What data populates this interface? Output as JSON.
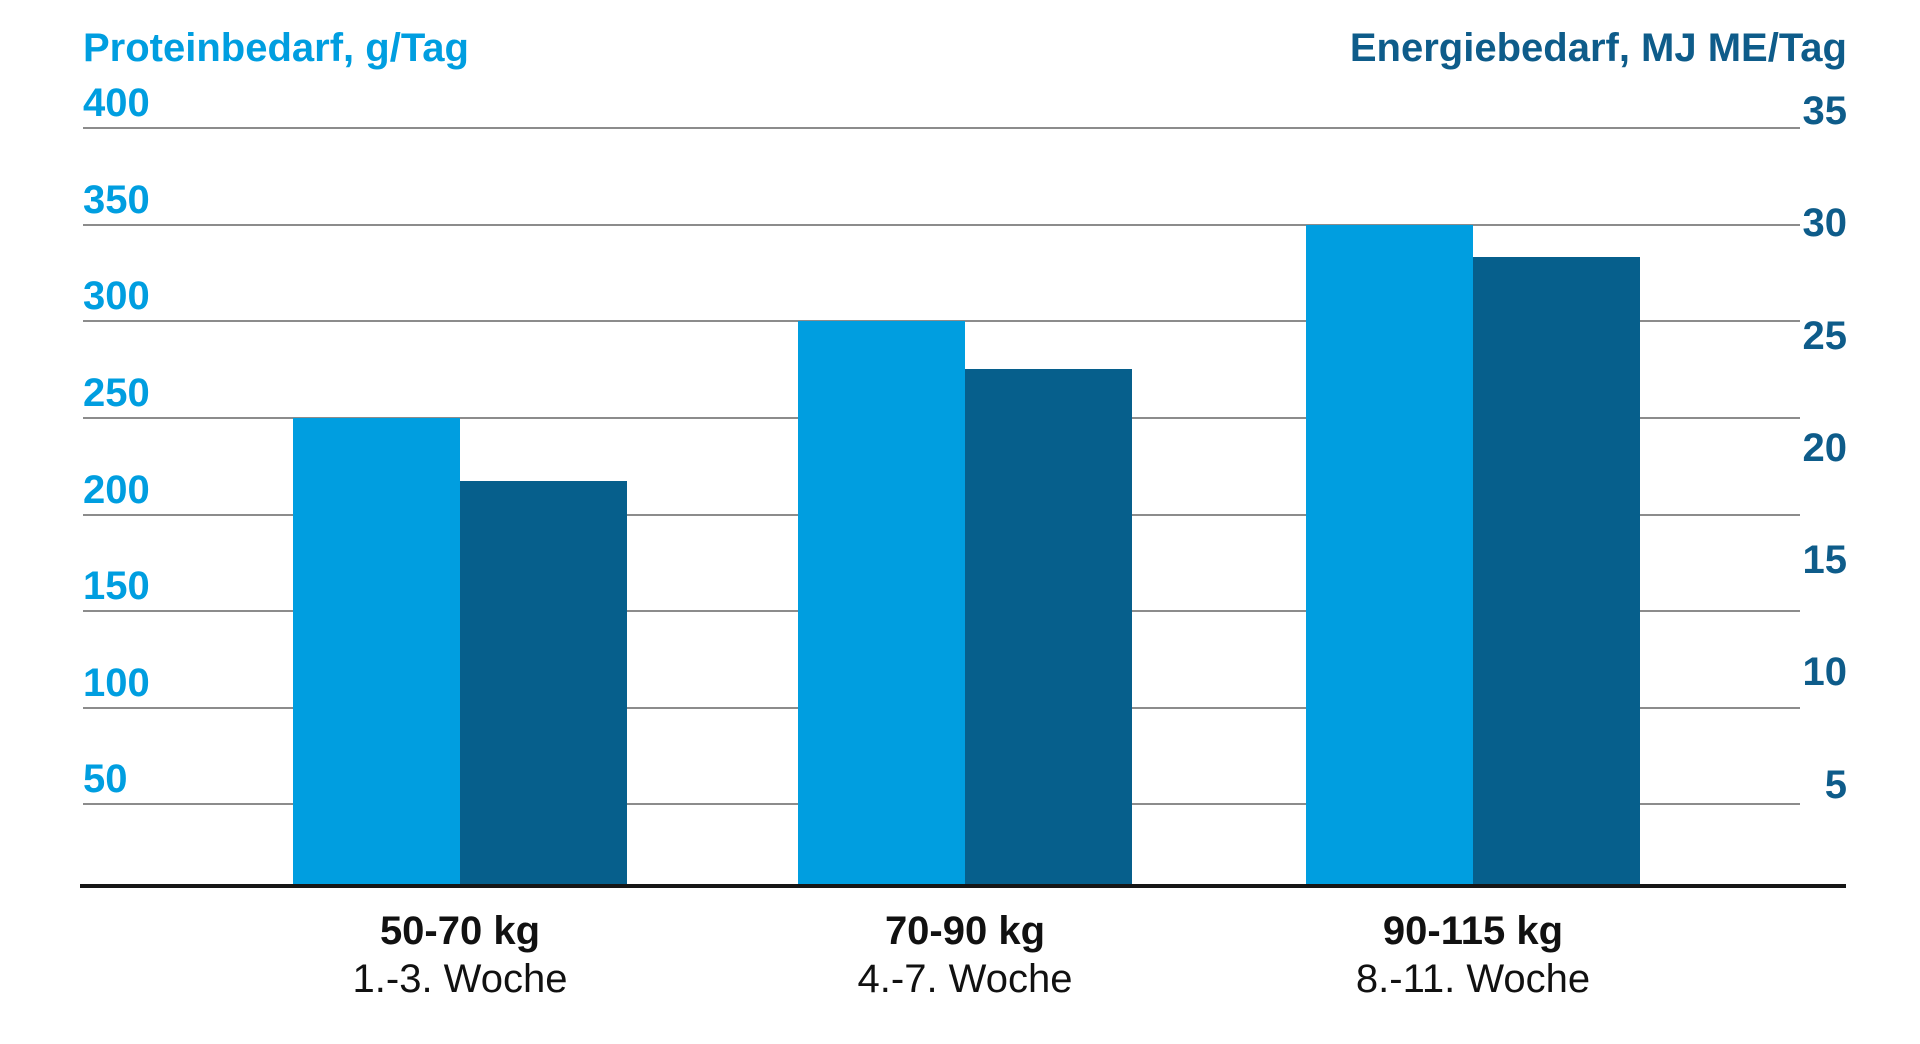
{
  "chart_data": {
    "type": "bar",
    "dual_axis": true,
    "grid": true,
    "legend": false,
    "categories": [
      {
        "weight_range": "50-70 kg",
        "weeks": "1.-3. Woche"
      },
      {
        "weight_range": "70-90 kg",
        "weeks": "4.-7. Woche"
      },
      {
        "weight_range": "90-115 kg",
        "weeks": "8.-11. Woche"
      }
    ],
    "series": [
      {
        "name": "Proteinbedarf, g/Tag",
        "axis": "left",
        "color": "#009EE0",
        "values": [
          250,
          300,
          350
        ]
      },
      {
        "name": "Energiebedarf, MJ ME/Tag",
        "axis": "right",
        "color": "#065F8C",
        "values": [
          18.5,
          23.5,
          28.5
        ]
      }
    ],
    "left_axis": {
      "title": "Proteinbedarf, g/Tag",
      "color": "#009EE0",
      "ticks": [
        400,
        350,
        300,
        250,
        200,
        150,
        100,
        50
      ]
    },
    "right_axis": {
      "title": "Energiebedarf, MJ ME/Tag",
      "color": "#0E5C8A",
      "ticks": [
        35,
        30,
        25,
        20,
        15,
        10,
        5
      ]
    },
    "colors": {
      "gridline": "#8C8C8C",
      "axis_line": "#161616",
      "category_text": "#111111"
    }
  }
}
